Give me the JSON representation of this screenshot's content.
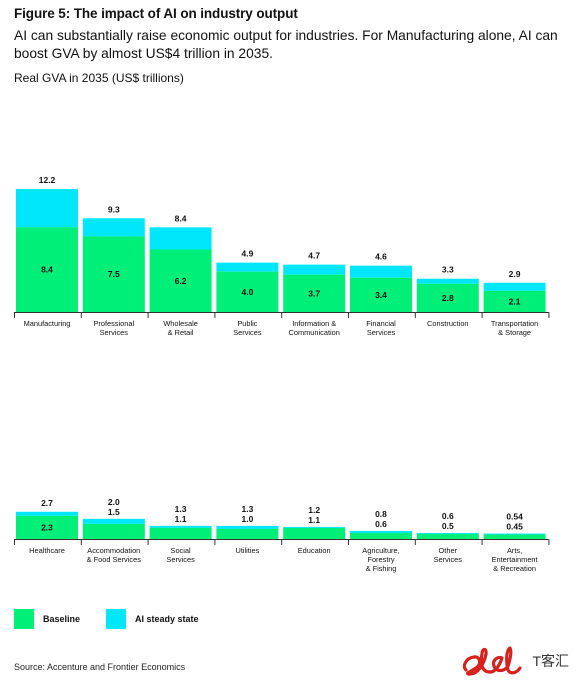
{
  "header": {
    "title": "Figure 5: The impact of AI on industry output",
    "subtitle": "AI can substantially raise economic output for industries. For Manufacturing alone, AI can boost GVA by almost US$4 trillion in 2035.",
    "y_label": "Real GVA in 2035 (US$ trillions)"
  },
  "legend": {
    "baseline_label": "Baseline",
    "ai_label": "AI steady state"
  },
  "source": "Source: Accenture and Frontier Economics",
  "watermark": {
    "text": "T客汇"
  },
  "colors": {
    "baseline": "#00ef78",
    "ai": "#00e7fc",
    "axis": "#333333"
  },
  "chart_data": {
    "type": "bar",
    "title": "",
    "ylabel": "Real GVA in 2035 (US$ trillions)",
    "stacked": true,
    "legend_position": "bottom-left",
    "grid": false,
    "ylim": [
      0,
      12.2
    ],
    "series_names": [
      "Baseline",
      "AI steady state"
    ],
    "panels": [
      {
        "categories": [
          {
            "label": [
              "Manufacturing"
            ],
            "baseline": 8.4,
            "total": 12.2,
            "baseline_label": "8.4",
            "total_label": "12.2"
          },
          {
            "label": [
              "Professional",
              "Services"
            ],
            "baseline": 7.5,
            "total": 9.3,
            "baseline_label": "7.5",
            "total_label": "9.3"
          },
          {
            "label": [
              "Wholesale",
              "& Retail"
            ],
            "baseline": 6.2,
            "total": 8.4,
            "baseline_label": "6.2",
            "total_label": "8.4"
          },
          {
            "label": [
              "Public",
              "Services"
            ],
            "baseline": 4.0,
            "total": 4.9,
            "baseline_label": "4.0",
            "total_label": "4.9"
          },
          {
            "label": [
              "Information &",
              "Communication"
            ],
            "baseline": 3.7,
            "total": 4.7,
            "baseline_label": "3.7",
            "total_label": "4.7"
          },
          {
            "label": [
              "Financial",
              "Services"
            ],
            "baseline": 3.4,
            "total": 4.6,
            "baseline_label": "3.4",
            "total_label": "4.6"
          },
          {
            "label": [
              "Construction"
            ],
            "baseline": 2.8,
            "total": 3.3,
            "baseline_label": "2.8",
            "total_label": "3.3"
          },
          {
            "label": [
              "Transportation",
              "& Storage"
            ],
            "baseline": 2.1,
            "total": 2.9,
            "baseline_label": "2.1",
            "total_label": "2.9"
          }
        ]
      },
      {
        "categories": [
          {
            "label": [
              "Healthcare"
            ],
            "baseline": 2.3,
            "total": 2.7,
            "baseline_label": "2.3",
            "total_label": "2.7"
          },
          {
            "label": [
              "Accommodation",
              "& Food Services"
            ],
            "baseline": 1.5,
            "total": 2.0,
            "baseline_label": "1.5",
            "total_label": "2.0"
          },
          {
            "label": [
              "Social",
              "Services"
            ],
            "baseline": 1.1,
            "total": 1.3,
            "baseline_label": "1.1",
            "total_label": "1.3"
          },
          {
            "label": [
              "Utilities"
            ],
            "baseline": 1.0,
            "total": 1.3,
            "baseline_label": "1.0",
            "total_label": "1.3"
          },
          {
            "label": [
              "Education"
            ],
            "baseline": 1.1,
            "total": 1.2,
            "baseline_label": "1.1",
            "total_label": "1.2"
          },
          {
            "label": [
              "Agriculture,",
              "Forestry",
              "& Fishing"
            ],
            "baseline": 0.6,
            "total": 0.8,
            "baseline_label": "0.6",
            "total_label": "0.8"
          },
          {
            "label": [
              "Other",
              "Services"
            ],
            "baseline": 0.5,
            "total": 0.6,
            "baseline_label": "0.5",
            "total_label": "0.6"
          },
          {
            "label": [
              "Arts,",
              "Entertainment",
              "& Recreation"
            ],
            "baseline": 0.45,
            "total": 0.54,
            "baseline_label": "0.45",
            "total_label": "0.54"
          }
        ]
      }
    ]
  }
}
